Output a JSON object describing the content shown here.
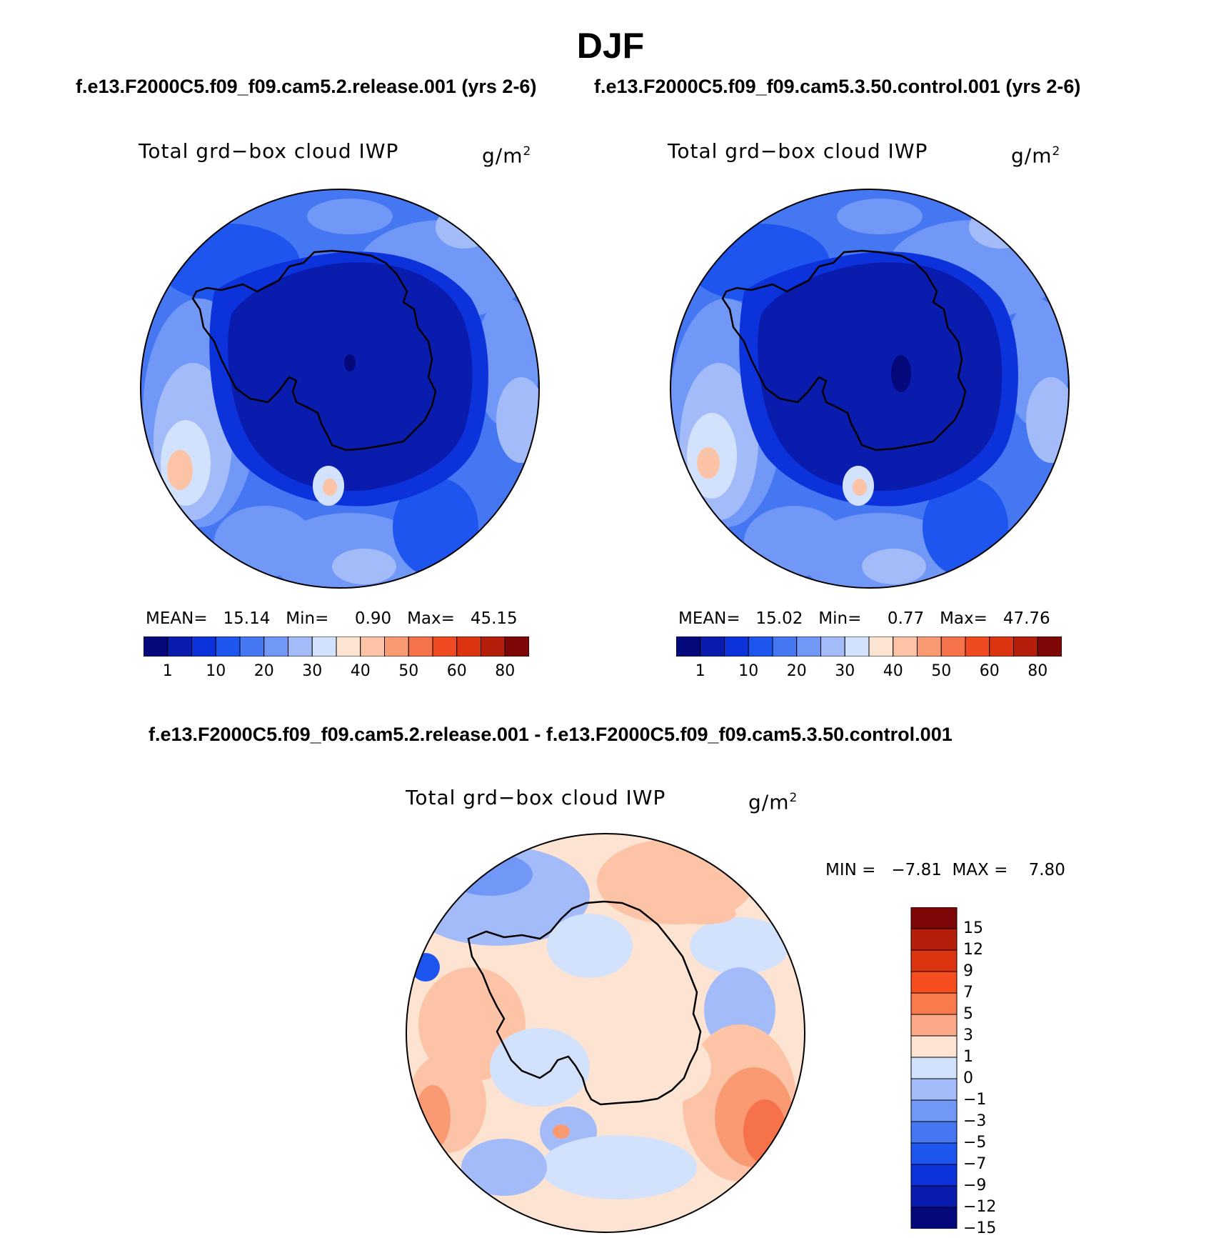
{
  "page": {
    "title": "DJF",
    "case1_title": "f.e13.F2000C5.f09_f09.cam5.2.release.001 (yrs 2-6)",
    "case2_title": "f.e13.F2000C5.f09_f09.cam5.3.50.control.001 (yrs 2-6)",
    "diff_title": "f.e13.F2000C5.f09_f09.cam5.2.release.001 - f.e13.F2000C5.f09_f09.cam5.3.50.control.001"
  },
  "panels": {
    "case1": {
      "variable": "Total grd−box cloud IWP",
      "units_base": "g/m",
      "units_exp": "2",
      "stats": "MEAN=   15.14   Min=     0.90   Max=   45.15",
      "mean": 15.14,
      "min": 0.9,
      "max": 45.15
    },
    "case2": {
      "variable": "Total grd−box cloud IWP",
      "units_base": "g/m",
      "units_exp": "2",
      "stats": "MEAN=   15.02   Min=     0.77   Max=   47.76",
      "mean": 15.02,
      "min": 0.77,
      "max": 47.76
    },
    "diff": {
      "variable": "Total grd−box cloud IWP",
      "units_base": "g/m",
      "units_exp": "2",
      "stats": "MIN =   −7.81  MAX =    7.80",
      "min": -7.81,
      "max": 7.8
    }
  },
  "colorbars": {
    "field": {
      "labels": [
        "1",
        "10",
        "20",
        "30",
        "40",
        "50",
        "60",
        "80"
      ],
      "colors": [
        "#04087a",
        "#0a1cae",
        "#0c32dc",
        "#1e55ef",
        "#4677f3",
        "#7298f7",
        "#a3bcf9",
        "#d3e2fc",
        "#fde4d2",
        "#fcc3a6",
        "#f99a73",
        "#f5724b",
        "#ef4a22",
        "#dc3310",
        "#b41e0a",
        "#7d0707"
      ]
    },
    "diff": {
      "labels": [
        "15",
        "12",
        "9",
        "7",
        "5",
        "3",
        "1",
        "0",
        "−1",
        "−3",
        "−5",
        "−7",
        "−9",
        "−12",
        "−15"
      ],
      "colors_top_to_bottom": [
        "#7d0707",
        "#b41e0a",
        "#dc3310",
        "#f64e1f",
        "#f97a4c",
        "#fba988",
        "#fde4d2",
        "#d3e2fc",
        "#a3bcf9",
        "#7298f7",
        "#4677f3",
        "#1e55ef",
        "#0c32dc",
        "#0a1cae",
        "#04087a"
      ]
    }
  },
  "map_palette": {
    "ocean_case": "#4677f3",
    "ocean_light": "#7298f7",
    "ocean_lighter": "#a3bcf9",
    "ocean_pale": "#d3e2fc",
    "ocean_dark": "#1e55ef",
    "shelf": "#0c32dc",
    "continent": "#0a1cae",
    "deep": "#04087a",
    "warm_pale": "#fde4d2",
    "warm": "#fcc3a6",
    "warm_mid": "#f99a73",
    "warm_strong": "#f5724b"
  }
}
